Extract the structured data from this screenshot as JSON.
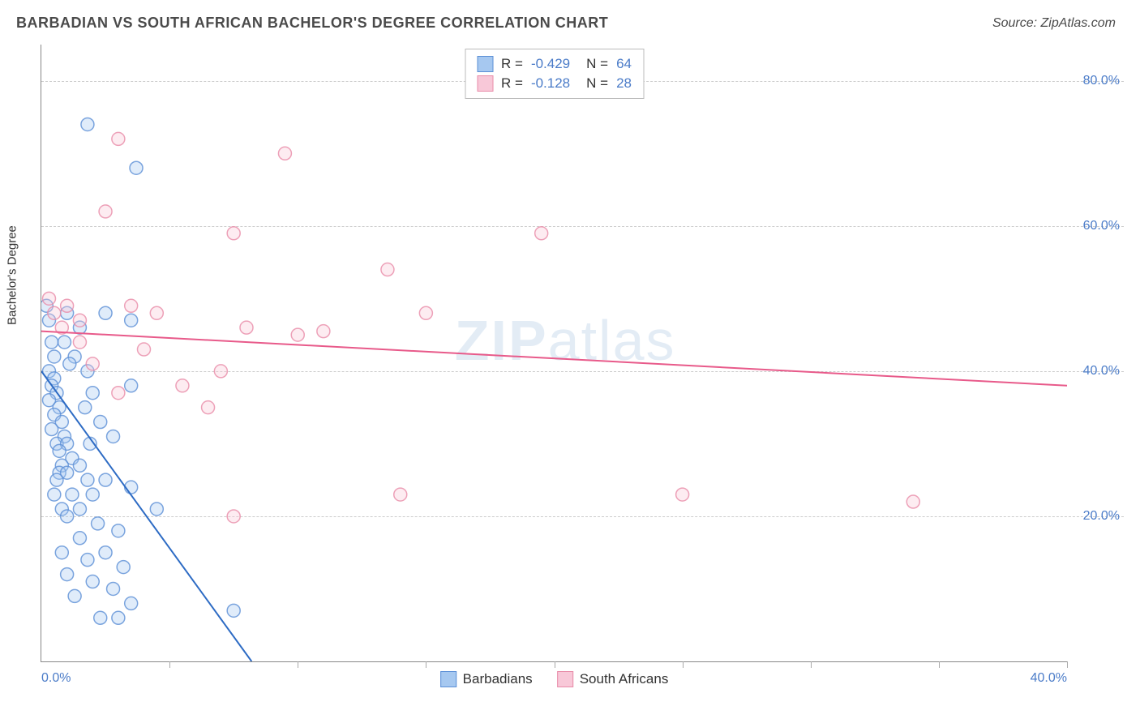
{
  "header": {
    "title": "BARBADIAN VS SOUTH AFRICAN BACHELOR'S DEGREE CORRELATION CHART",
    "source": "Source: ZipAtlas.com"
  },
  "chart": {
    "type": "scatter",
    "ylabel": "Bachelor's Degree",
    "watermark": "ZIPatlas",
    "xlim": [
      0,
      40
    ],
    "ylim": [
      0,
      85
    ],
    "yticks": [
      20,
      40,
      60,
      80
    ],
    "ytick_labels": [
      "20.0%",
      "40.0%",
      "60.0%",
      "80.0%"
    ],
    "xticks": [
      0,
      5,
      10,
      15,
      20,
      25,
      30,
      35,
      40
    ],
    "xtick_labels_visible": {
      "0": "0.0%",
      "40": "40.0%"
    },
    "grid_color": "#cccccc",
    "axis_color": "#888888",
    "background_color": "#ffffff",
    "marker_radius": 8,
    "marker_opacity_fill": 0.35,
    "marker_opacity_stroke": 0.8,
    "line_width": 2,
    "series": [
      {
        "name": "Barbadians",
        "color_fill": "#a6c8f0",
        "color_stroke": "#5b8fd6",
        "color_line": "#2d6bc4",
        "R": "-0.429",
        "N": "64",
        "trend": {
          "x1": 0,
          "y1": 40,
          "x2": 8.2,
          "y2": 0
        },
        "points": [
          [
            0.2,
            49
          ],
          [
            0.3,
            47
          ],
          [
            0.4,
            44
          ],
          [
            0.5,
            42
          ],
          [
            0.3,
            40
          ],
          [
            0.5,
            39
          ],
          [
            0.4,
            38
          ],
          [
            0.6,
            37
          ],
          [
            0.3,
            36
          ],
          [
            0.7,
            35
          ],
          [
            0.5,
            34
          ],
          [
            0.8,
            33
          ],
          [
            0.4,
            32
          ],
          [
            0.9,
            31
          ],
          [
            0.6,
            30
          ],
          [
            1.0,
            30
          ],
          [
            0.7,
            29
          ],
          [
            1.2,
            28
          ],
          [
            0.8,
            27
          ],
          [
            1.5,
            27
          ],
          [
            0.7,
            26
          ],
          [
            1.0,
            26
          ],
          [
            1.8,
            25
          ],
          [
            2.5,
            25
          ],
          [
            0.5,
            23
          ],
          [
            1.2,
            23
          ],
          [
            2.0,
            23
          ],
          [
            3.5,
            24
          ],
          [
            0.8,
            21
          ],
          [
            1.5,
            21
          ],
          [
            4.5,
            21
          ],
          [
            1.0,
            20
          ],
          [
            2.2,
            19
          ],
          [
            3.0,
            18
          ],
          [
            1.5,
            17
          ],
          [
            0.8,
            15
          ],
          [
            2.5,
            15
          ],
          [
            1.8,
            14
          ],
          [
            3.2,
            13
          ],
          [
            1.0,
            12
          ],
          [
            2.0,
            11
          ],
          [
            2.8,
            10
          ],
          [
            1.3,
            9
          ],
          [
            3.5,
            8
          ],
          [
            2.3,
            6
          ],
          [
            3.0,
            6
          ],
          [
            7.5,
            7
          ],
          [
            1.0,
            48
          ],
          [
            1.5,
            46
          ],
          [
            2.5,
            48
          ],
          [
            1.8,
            40
          ],
          [
            3.5,
            47
          ],
          [
            1.8,
            74
          ],
          [
            3.7,
            68
          ],
          [
            2.0,
            37
          ],
          [
            1.3,
            42
          ],
          [
            0.9,
            44
          ],
          [
            1.1,
            41
          ],
          [
            1.7,
            35
          ],
          [
            2.3,
            33
          ],
          [
            0.6,
            25
          ],
          [
            1.9,
            30
          ],
          [
            3.5,
            38
          ],
          [
            2.8,
            31
          ]
        ]
      },
      {
        "name": "South Africans",
        "color_fill": "#f8c8d8",
        "color_stroke": "#e88ba8",
        "color_line": "#e85a8a",
        "R": "-0.128",
        "N": "28",
        "trend": {
          "x1": 0,
          "y1": 45.5,
          "x2": 40,
          "y2": 38
        },
        "points": [
          [
            0.3,
            50
          ],
          [
            0.5,
            48
          ],
          [
            1.0,
            49
          ],
          [
            1.5,
            47
          ],
          [
            3.0,
            72
          ],
          [
            2.5,
            62
          ],
          [
            3.5,
            49
          ],
          [
            4.5,
            48
          ],
          [
            9.5,
            70
          ],
          [
            7.5,
            59
          ],
          [
            8.0,
            46
          ],
          [
            7.0,
            40
          ],
          [
            10.0,
            45
          ],
          [
            15.0,
            48
          ],
          [
            13.5,
            54
          ],
          [
            19.5,
            59
          ],
          [
            14.0,
            23
          ],
          [
            25.0,
            23
          ],
          [
            34.0,
            22
          ],
          [
            6.5,
            35
          ],
          [
            7.5,
            20
          ],
          [
            4.0,
            43
          ],
          [
            5.5,
            38
          ],
          [
            3.0,
            37
          ],
          [
            1.5,
            44
          ],
          [
            0.8,
            46
          ],
          [
            2.0,
            41
          ],
          [
            11.0,
            45.5
          ]
        ]
      }
    ],
    "legend_top": {
      "rows": [
        {
          "swatch_fill": "#a6c8f0",
          "swatch_stroke": "#5b8fd6",
          "r_label": "R =",
          "r_val": "-0.429",
          "n_label": "N =",
          "n_val": "64"
        },
        {
          "swatch_fill": "#f8c8d8",
          "swatch_stroke": "#e88ba8",
          "r_label": "R =",
          "r_val": " -0.128",
          "n_label": "N =",
          "n_val": "28"
        }
      ]
    },
    "legend_bottom": [
      {
        "swatch_fill": "#a6c8f0",
        "swatch_stroke": "#5b8fd6",
        "label": "Barbadians"
      },
      {
        "swatch_fill": "#f8c8d8",
        "swatch_stroke": "#e88ba8",
        "label": "South Africans"
      }
    ]
  }
}
